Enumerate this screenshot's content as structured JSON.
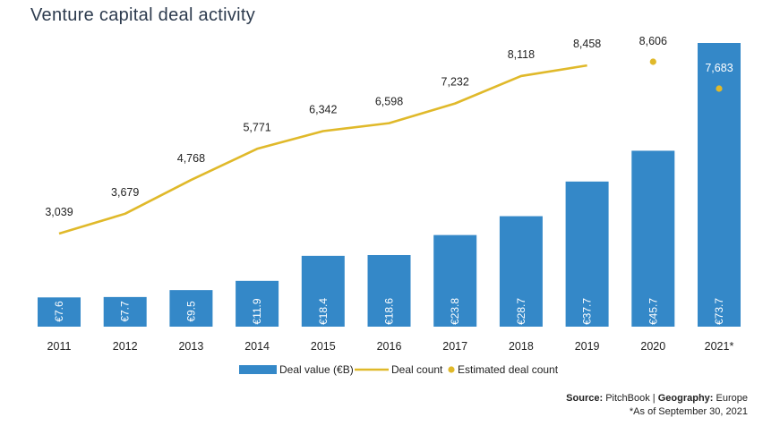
{
  "title": "Venture capital deal activity",
  "footer": {
    "source_label": "Source:",
    "source_value": "PitchBook",
    "separator": "|",
    "geo_label": "Geography:",
    "geo_value": "Europe",
    "note": "*As of September 30, 2021"
  },
  "colors": {
    "bar": "#3488c8",
    "line": "#e0b92a",
    "text": "#222222"
  },
  "chart_data": {
    "type": "bar",
    "categories": [
      "2011",
      "2012",
      "2013",
      "2014",
      "2015",
      "2016",
      "2017",
      "2018",
      "2019",
      "2020",
      "2021*"
    ],
    "series": [
      {
        "name": "Deal value (€B)",
        "type": "bar",
        "values": [
          7.6,
          7.7,
          9.5,
          11.9,
          18.4,
          18.6,
          23.8,
          28.7,
          37.7,
          45.7,
          73.7
        ],
        "labels": [
          "€7.6",
          "€7.7",
          "€9.5",
          "€11.9",
          "€18.4",
          "€18.6",
          "€23.8",
          "€28.7",
          "€37.7",
          "€45.7",
          "€73.7"
        ]
      },
      {
        "name": "Deal count",
        "type": "line",
        "values": [
          3039,
          3679,
          4768,
          5771,
          6342,
          6598,
          7232,
          8118,
          8458,
          null,
          null
        ],
        "labels": [
          "3,039",
          "3,679",
          "4,768",
          "5,771",
          "6,342",
          "6,598",
          "7,232",
          "8,118",
          "8,458",
          "",
          ""
        ]
      },
      {
        "name": "Estimated deal count",
        "type": "scatter",
        "values": [
          null,
          null,
          null,
          null,
          null,
          null,
          null,
          null,
          null,
          8606,
          7683
        ],
        "labels": [
          "",
          "",
          "",
          "",
          "",
          "",
          "",
          "",
          "",
          "8,606",
          "7,683"
        ]
      }
    ],
    "legend": [
      "Deal value (€B)",
      "Deal count",
      "Estimated deal count"
    ],
    "legend_position": "bottom",
    "grid": false
  }
}
